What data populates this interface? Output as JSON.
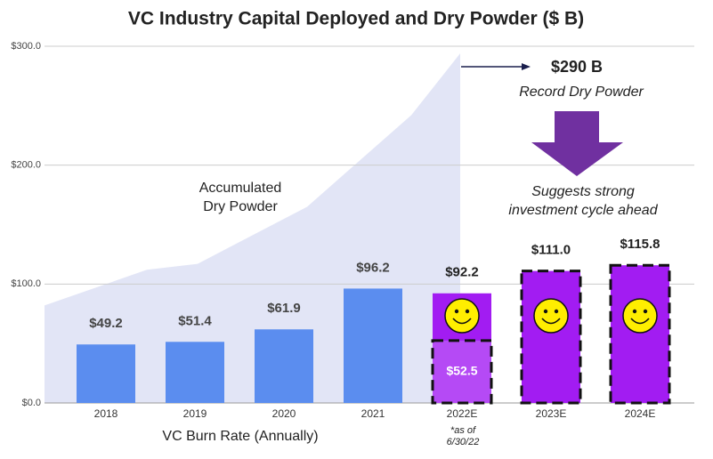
{
  "chart_data": {
    "type": "bar",
    "title": "VC Industry Capital Deployed and Dry Powder ($ B)",
    "categories": [
      "2018",
      "2019",
      "2020",
      "2021",
      "2022E",
      "2023E",
      "2024E"
    ],
    "values": [
      49.2,
      51.4,
      61.9,
      96.2,
      92.2,
      111.0,
      115.8
    ],
    "value_labels": [
      "$49.2",
      "$51.4",
      "$61.9",
      "$96.2",
      "$92.2",
      "$111.0",
      "$115.8"
    ],
    "colors": [
      "#5b8def",
      "#5b8def",
      "#5b8def",
      "#5b8def",
      "#a21cf2",
      "#a21cf2",
      "#a21cf2"
    ],
    "dashed": [
      false,
      false,
      false,
      false,
      false,
      true,
      true
    ],
    "sub_bars": {
      "values": [
        null,
        null,
        null,
        null,
        52.5,
        null,
        null
      ],
      "value_labels": [
        null,
        null,
        null,
        null,
        "$52.5",
        null,
        null
      ],
      "color": "#b54af5"
    },
    "area": {
      "label": [
        "Accumulated",
        "Dry Powder"
      ],
      "color": "#dde1f4",
      "x": [
        -0.69,
        0.46,
        1.03,
        2.26,
        3.43,
        3.98
      ],
      "values": [
        82,
        112,
        117,
        165,
        242,
        294
      ]
    },
    "ylim": [
      0,
      300
    ],
    "yticks": [
      {
        "value": 0,
        "label": "$0.0"
      },
      {
        "value": 100,
        "label": "$100.0"
      },
      {
        "value": 200,
        "label": "$200.0"
      },
      {
        "value": 300,
        "label": "$300.0"
      }
    ],
    "grid": true,
    "annotations": {
      "record_value": "$290 B",
      "record_label": "Record Dry Powder",
      "outlook": [
        "Suggests strong",
        "investment cycle ahead"
      ],
      "x_label": "VC Burn Rate (Annually)",
      "footnote": [
        "*as of",
        "6/30/22"
      ]
    }
  }
}
